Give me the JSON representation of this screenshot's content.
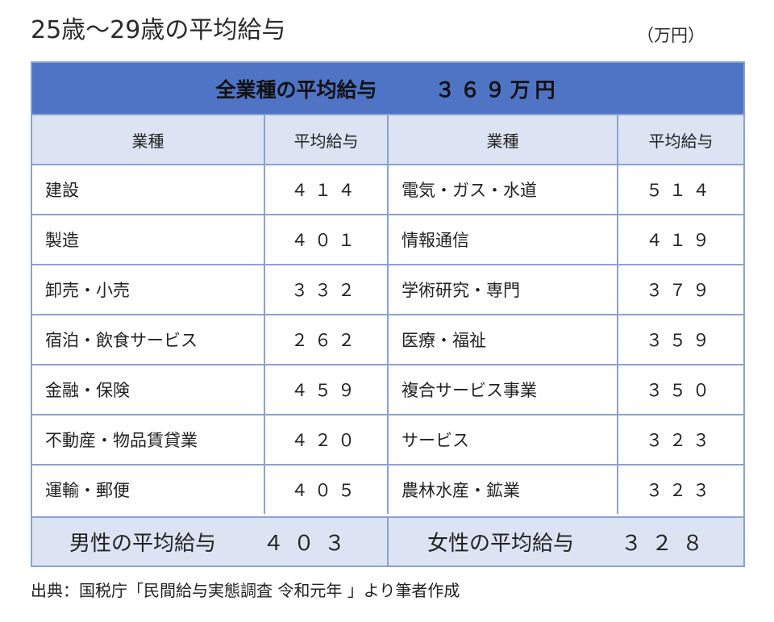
{
  "title": "25歳〜29歳の平均給与",
  "unit": "（万円）",
  "banner": {
    "label": "全業種の平均給与",
    "amount": "３６９万円"
  },
  "headers": [
    "業種",
    "平均給与",
    "業種",
    "平均給与"
  ],
  "rows": [
    {
      "left_industry": "建設",
      "left_value": "４１４",
      "right_industry": "電気・ガス・水道",
      "right_value": "５１４"
    },
    {
      "left_industry": "製造",
      "left_value": "４０１",
      "right_industry": "情報通信",
      "right_value": "４１９"
    },
    {
      "left_industry": "卸売・小売",
      "left_value": "３３２",
      "right_industry": "学術研究・専門",
      "right_value": "３７９"
    },
    {
      "left_industry": "宿泊・飲食サービス",
      "left_value": "２６２",
      "right_industry": "医療・福祉",
      "right_value": "３５９"
    },
    {
      "left_industry": "金融・保険",
      "left_value": "４５９",
      "right_industry": "複合サービス事業",
      "right_value": "３５０"
    },
    {
      "left_industry": "不動産・物品賃貸業",
      "left_value": "４２０",
      "right_industry": "サービス",
      "right_value": "３２３"
    },
    {
      "left_industry": "運輸・郵便",
      "left_value": "４０５",
      "right_industry": "農林水産・鉱業",
      "right_value": "３２３"
    }
  ],
  "footer": {
    "male_label": "男性の平均給与",
    "male_value": "４０３",
    "female_label": "女性の平均給与",
    "female_value": "３２８"
  },
  "source": "出典：国税庁「民間給与実態調査 令和元年 」より筆者作成",
  "colors": {
    "banner": "#4f74c6",
    "header_fill": "#dce4f3",
    "border": "#8aa1d2"
  }
}
